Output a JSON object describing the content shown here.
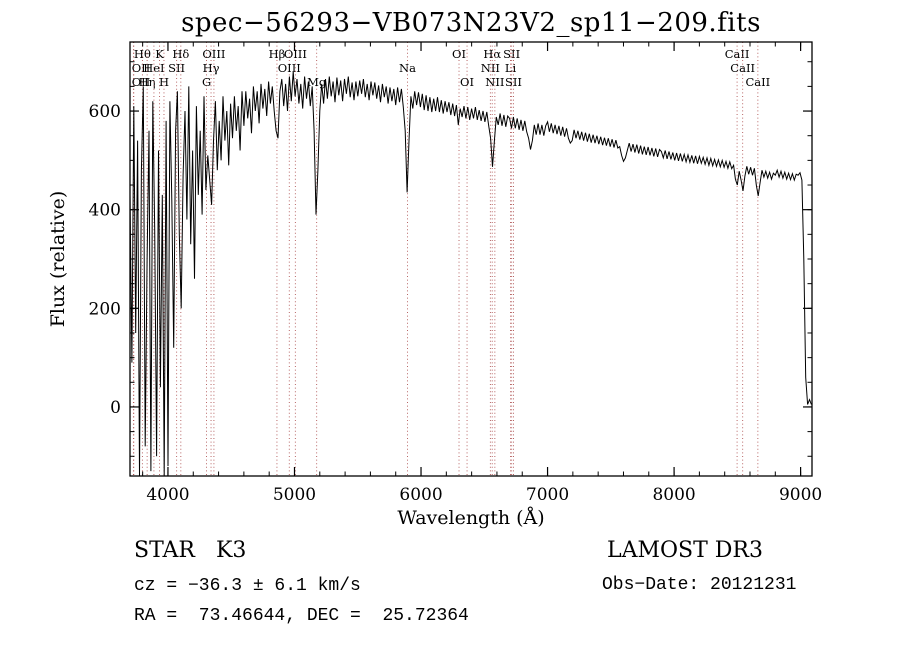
{
  "annotations": {
    "class_label": "STAR   K3",
    "survey": "LAMOST DR3",
    "cz": "cz = −36.3 ± 6.1 km/s",
    "obs_date": "Obs−Date: 20121231",
    "coords": "RA =  73.46644, DEC =  25.72364"
  },
  "chart_data": {
    "type": "line",
    "title": "spec−56293−VB073N23V2_sp11−209.fits",
    "xlabel": "Wavelength (Å)",
    "ylabel": "Flux (relative)",
    "xlim": [
      3700,
      9090
    ],
    "ylim": [
      -140,
      740
    ],
    "x_ticks": [
      4000,
      5000,
      6000,
      7000,
      8000,
      9000
    ],
    "y_ticks": [
      0,
      200,
      400,
      600
    ],
    "x_minor_step": 200,
    "y_minor_step": 50,
    "grid": false,
    "legend": "none",
    "line_color": "#b05555",
    "line_label_color": "#992222",
    "spectral_lines": [
      {
        "label": "OII",
        "wavelength": 3727.1,
        "row": 2
      },
      {
        "label": "OII",
        "wavelength": 3729.9,
        "row": 3
      },
      {
        "label": "Hθ",
        "wavelength": 3798.0,
        "row": 1
      },
      {
        "label": "Hη",
        "wavelength": 3835.4,
        "row": 3
      },
      {
        "label": "HeI",
        "wavelength": 3889.0,
        "row": 2
      },
      {
        "label": "K",
        "wavelength": 3933.7,
        "row": 1
      },
      {
        "label": "H",
        "wavelength": 3968.5,
        "row": 3
      },
      {
        "label": "SII",
        "wavelength": 4068.6,
        "row": 2
      },
      {
        "label": "Hδ",
        "wavelength": 4101.7,
        "row": 1
      },
      {
        "label": "G",
        "wavelength": 4305.0,
        "row": 3
      },
      {
        "label": "Hγ",
        "wavelength": 4340.5,
        "row": 2
      },
      {
        "label": "OIII",
        "wavelength": 4363.2,
        "row": 1
      },
      {
        "label": "Hβ",
        "wavelength": 4861.3,
        "row": 1
      },
      {
        "label": "OIII",
        "wavelength": 4958.9,
        "row": 2
      },
      {
        "label": "OIII",
        "wavelength": 5006.8,
        "row": 1
      },
      {
        "label": "Mg",
        "wavelength": 5175.3,
        "row": 3
      },
      {
        "label": "Na",
        "wavelength": 5893.0,
        "row": 2
      },
      {
        "label": "OI",
        "wavelength": 6300.3,
        "row": 1
      },
      {
        "label": "OI",
        "wavelength": 6363.8,
        "row": 3
      },
      {
        "label": "NII",
        "wavelength": 6548.1,
        "row": 2
      },
      {
        "label": "Hα",
        "wavelength": 6562.8,
        "row": 1
      },
      {
        "label": "NII",
        "wavelength": 6583.5,
        "row": 3
      },
      {
        "label": "Li",
        "wavelength": 6707.8,
        "row": 2
      },
      {
        "label": "SII",
        "wavelength": 6716.4,
        "row": 1
      },
      {
        "label": "SII",
        "wavelength": 6730.8,
        "row": 3
      },
      {
        "label": "CaII",
        "wavelength": 8498.0,
        "row": 1
      },
      {
        "label": "CaII",
        "wavelength": 8542.1,
        "row": 2
      },
      {
        "label": "CaII",
        "wavelength": 8662.1,
        "row": 3
      }
    ],
    "series": [
      {
        "name": "spectrum",
        "color": "#000000",
        "x_start": 3700,
        "x_step": 15,
        "flux": [
          430,
          90,
          610,
          150,
          540,
          -140,
          480,
          650,
          -80,
          300,
          560,
          -130,
          620,
          360,
          -100,
          520,
          40,
          430,
          -140,
          580,
          -120,
          620,
          420,
          120,
          560,
          640,
          350,
          200,
          470,
          600,
          380,
          650,
          330,
          520,
          260,
          610,
          430,
          560,
          390,
          630,
          440,
          510,
          460,
          410,
          540,
          620,
          480,
          580,
          500,
          630,
          540,
          600,
          490,
          615,
          545,
          630,
          560,
          610,
          520,
          640,
          570,
          640,
          585,
          625,
          555,
          650,
          600,
          640,
          575,
          655,
          605,
          645,
          590,
          660,
          615,
          650,
          600,
          560,
          545,
          640,
          665,
          610,
          655,
          600,
          670,
          620,
          680,
          630,
          665,
          615,
          655,
          605,
          670,
          625,
          660,
          610,
          650,
          560,
          390,
          480,
          600,
          655,
          615,
          665,
          625,
          670,
          630,
          660,
          618,
          668,
          632,
          662,
          620,
          665,
          635,
          670,
          628,
          658,
          622,
          660,
          630,
          662,
          635,
          665,
          628,
          655,
          622,
          660,
          632,
          658,
          625,
          652,
          618,
          655,
          628,
          650,
          615,
          648,
          620,
          645,
          612,
          648,
          618,
          645,
          608,
          560,
          435,
          540,
          630,
          605,
          640,
          612,
          638,
          608,
          635,
          602,
          632,
          600,
          628,
          598,
          625,
          600,
          628,
          598,
          622,
          595,
          620,
          598,
          618,
          592,
          615,
          590,
          612,
          572,
          605,
          588,
          610,
          585,
          608,
          582,
          605,
          585,
          608,
          582,
          602,
          580,
          600,
          578,
          598,
          570,
          545,
          487,
          540,
          588,
          572,
          595,
          570,
          592,
          568,
          590,
          585,
          565,
          588,
          565,
          585,
          562,
          582,
          560,
          580,
          558,
          545,
          522,
          540,
          572,
          552,
          575,
          552,
          572,
          550,
          570,
          578,
          558,
          575,
          555,
          572,
          553,
          570,
          550,
          568,
          548,
          565,
          545,
          535,
          540,
          562,
          545,
          560,
          542,
          558,
          540,
          556,
          538,
          554,
          536,
          552,
          535,
          550,
          533,
          548,
          531,
          546,
          530,
          545,
          528,
          543,
          526,
          541,
          525,
          528,
          510,
          498,
          505,
          520,
          535,
          518,
          533,
          516,
          532,
          514,
          530,
          512,
          528,
          511,
          527,
          510,
          525,
          508,
          524,
          507,
          522,
          518,
          505,
          520,
          503,
          518,
          502,
          516,
          500,
          515,
          499,
          514,
          498,
          512,
          497,
          511,
          496,
          510,
          494,
          509,
          493,
          508,
          494,
          506,
          492,
          505,
          490,
          504,
          489,
          502,
          488,
          501,
          487,
          500,
          486,
          498,
          484,
          497,
          483,
          490,
          462,
          450,
          478,
          460,
          438,
          468,
          488,
          472,
          486,
          470,
          484,
          450,
          428,
          455,
          480,
          466,
          478,
          464,
          476,
          462,
          474,
          470,
          480,
          466,
          478,
          464,
          476,
          462,
          474,
          461,
          473,
          460,
          472,
          470,
          475,
          460,
          300,
          60,
          5,
          15,
          5
        ]
      }
    ]
  }
}
